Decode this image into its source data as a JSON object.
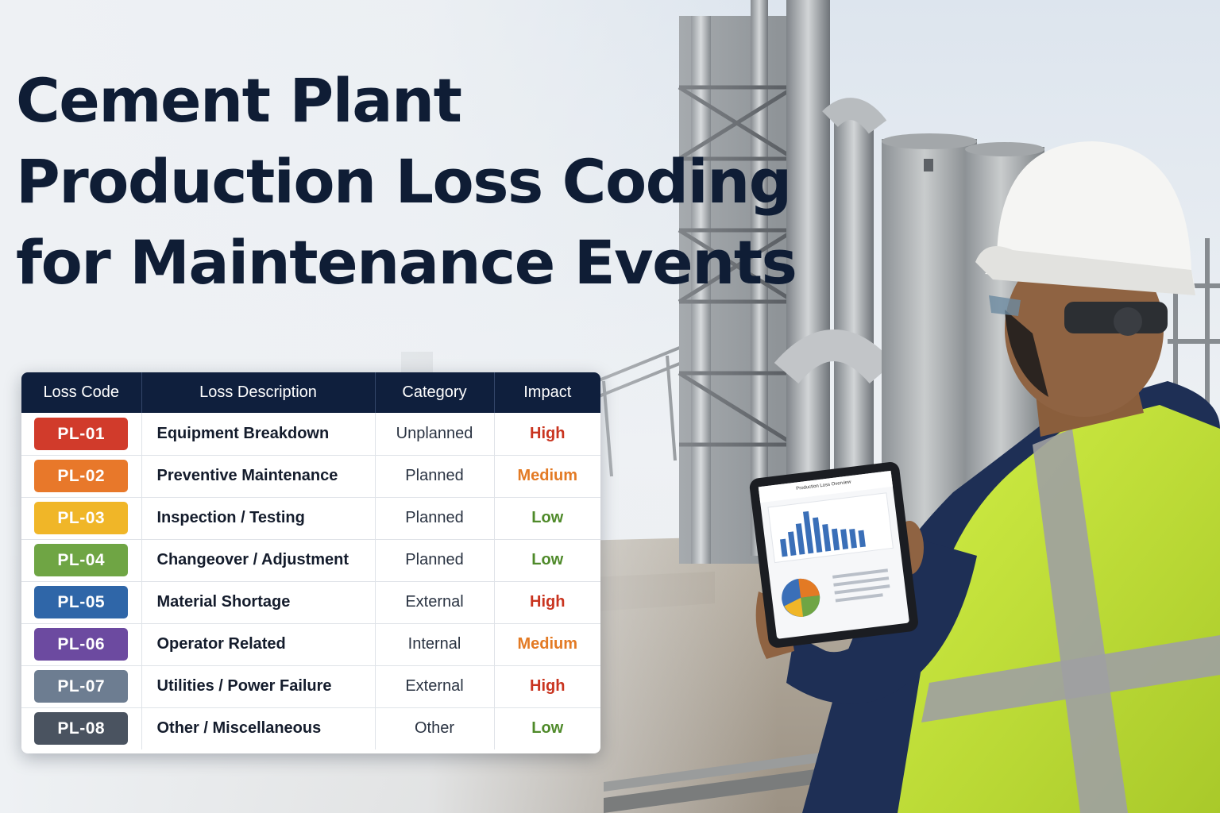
{
  "title": {
    "line1": "Cement Plant",
    "line2": "Production Loss Coding",
    "line3": "for Maintenance Events"
  },
  "table": {
    "headers": [
      "Loss Code",
      "Loss Description",
      "Category",
      "Impact"
    ],
    "rows": [
      {
        "code": "PL-01",
        "description": "Equipment Breakdown",
        "category": "Unplanned",
        "impact": "High",
        "badge_color": "#d13b2b",
        "impact_color": "#c9341f"
      },
      {
        "code": "PL-02",
        "description": "Preventive Maintenance",
        "category": "Planned",
        "impact": "Medium",
        "badge_color": "#e8782a",
        "impact_color": "#e37a24"
      },
      {
        "code": "PL-03",
        "description": "Inspection / Testing",
        "category": "Planned",
        "impact": "Low",
        "badge_color": "#f0b628",
        "impact_color": "#4f8a2a"
      },
      {
        "code": "PL-04",
        "description": "Changeover / Adjustment",
        "category": "Planned",
        "impact": "Low",
        "badge_color": "#6fa544",
        "impact_color": "#4f8a2a"
      },
      {
        "code": "PL-05",
        "description": "Material Shortage",
        "category": "External",
        "impact": "High",
        "badge_color": "#2f66a8",
        "impact_color": "#c9341f"
      },
      {
        "code": "PL-06",
        "description": "Operator Related",
        "category": "Internal",
        "impact": "Medium",
        "badge_color": "#6c4aa0",
        "impact_color": "#e37a24"
      },
      {
        "code": "PL-07",
        "description": "Utilities / Power Failure",
        "category": "External",
        "impact": "High",
        "badge_color": "#6d7d91",
        "impact_color": "#c9341f"
      },
      {
        "code": "PL-08",
        "description": "Other / Miscellaneous",
        "category": "Other",
        "impact": "Low",
        "badge_color": "#4a5360",
        "impact_color": "#4f8a2a"
      }
    ]
  },
  "tablet": {
    "screen_title": "Production Loss Overview"
  },
  "colors": {
    "title": "#0f1d35",
    "header_bg": "#0f1f3d",
    "vest": "#c6e636",
    "helmet": "#f4f4f2",
    "jacket": "#1e2f55"
  },
  "icons": [
    "factory-illustration",
    "worker-illustration",
    "tablet-illustration"
  ]
}
